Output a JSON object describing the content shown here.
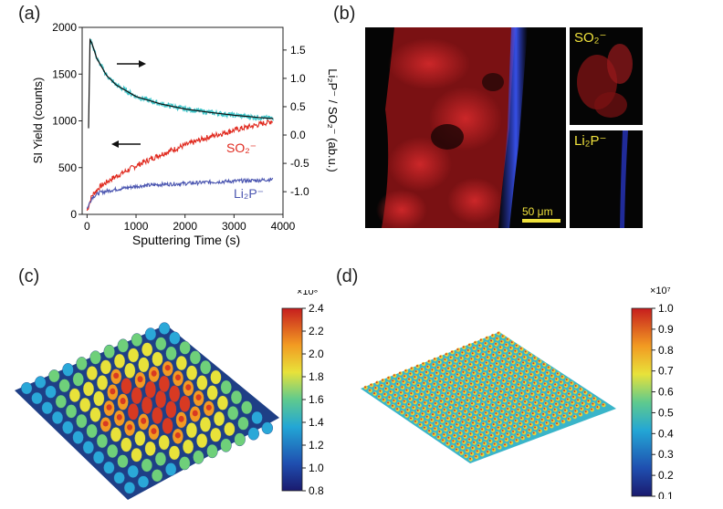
{
  "panels": {
    "a": "(a)",
    "b": "(b)",
    "c": "(c)",
    "d": "(d)"
  },
  "panel_a": {
    "y_left_label": "SI Yield (counts)",
    "x_label": "Sputtering Time (s)",
    "y_right_label": "Li₂P⁻ / SO₂⁻ (ab.u.)",
    "series_labels": {
      "so2": "SO₂⁻",
      "li2p": "Li₂P⁻"
    },
    "colors": {
      "so2": "#e02a1f",
      "li2p": "#4a55b0",
      "ratio": "#3bc4c8",
      "fit": "#111111"
    }
  },
  "chart_data": [
    {
      "type": "line",
      "x_label": "Sputtering Time (s)",
      "y_label": "SI Yield (counts)",
      "y2_label": "Li₂P⁻ / SO₂⁻ (ab.u.)",
      "xlim": [
        -100,
        4000
      ],
      "ylim": [
        0,
        2000
      ],
      "y2lim": [
        -1.4,
        1.9
      ],
      "x_ticks": [
        "0",
        "1000",
        "2000",
        "3000",
        "4000"
      ],
      "y_ticks": [
        "0",
        "500",
        "1000",
        "1500",
        "2000"
      ],
      "y2_ticks": [
        "1.5",
        "1.0",
        "0.5",
        "0.0",
        "-0.5",
        "-1.0"
      ],
      "series": [
        {
          "name": "SO₂⁻",
          "axis": "left",
          "x": [
            0,
            100,
            250,
            500,
            1000,
            1500,
            2000,
            2500,
            3000,
            3500,
            3800
          ],
          "y": [
            40,
            200,
            290,
            380,
            520,
            640,
            740,
            830,
            900,
            960,
            1000
          ]
        },
        {
          "name": "Li₂P⁻",
          "axis": "left",
          "x": [
            0,
            100,
            250,
            500,
            1000,
            1500,
            2000,
            2500,
            3000,
            3500,
            3800
          ],
          "y": [
            60,
            180,
            230,
            260,
            300,
            320,
            330,
            345,
            355,
            365,
            375
          ]
        },
        {
          "axis": "right",
          "x": [
            60,
            100,
            200,
            400,
            600,
            1000,
            1500,
            2000,
            2500,
            3000,
            3500,
            3800
          ],
          "y": [
            1.68,
            1.62,
            1.35,
            1.05,
            0.88,
            0.68,
            0.55,
            0.46,
            0.4,
            0.35,
            0.31,
            0.29
          ]
        }
      ]
    },
    {
      "type": "heatmap",
      "colorbar_ticks": [
        "2.4",
        "2.2",
        "2.0",
        "1.8",
        "1.6",
        "1.4",
        "1.2",
        "1.0",
        "0.8"
      ],
      "colorbar_range": [
        0.8,
        2.4
      ],
      "colorbar_exponent": "×10⁸"
    },
    {
      "type": "heatmap",
      "colorbar_ticks": [
        "1.0",
        "0.9",
        "0.8",
        "0.7",
        "0.6",
        "0.5",
        "0.4",
        "0.3",
        "0.2",
        "0.1"
      ],
      "colorbar_range": [
        0.1,
        1.0
      ],
      "colorbar_exponent": "×10⁷"
    }
  ],
  "panel_b": {
    "so2_label": "SO₂⁻",
    "li2p_label": "Li₂P⁻",
    "scalebar": "50 μm"
  }
}
